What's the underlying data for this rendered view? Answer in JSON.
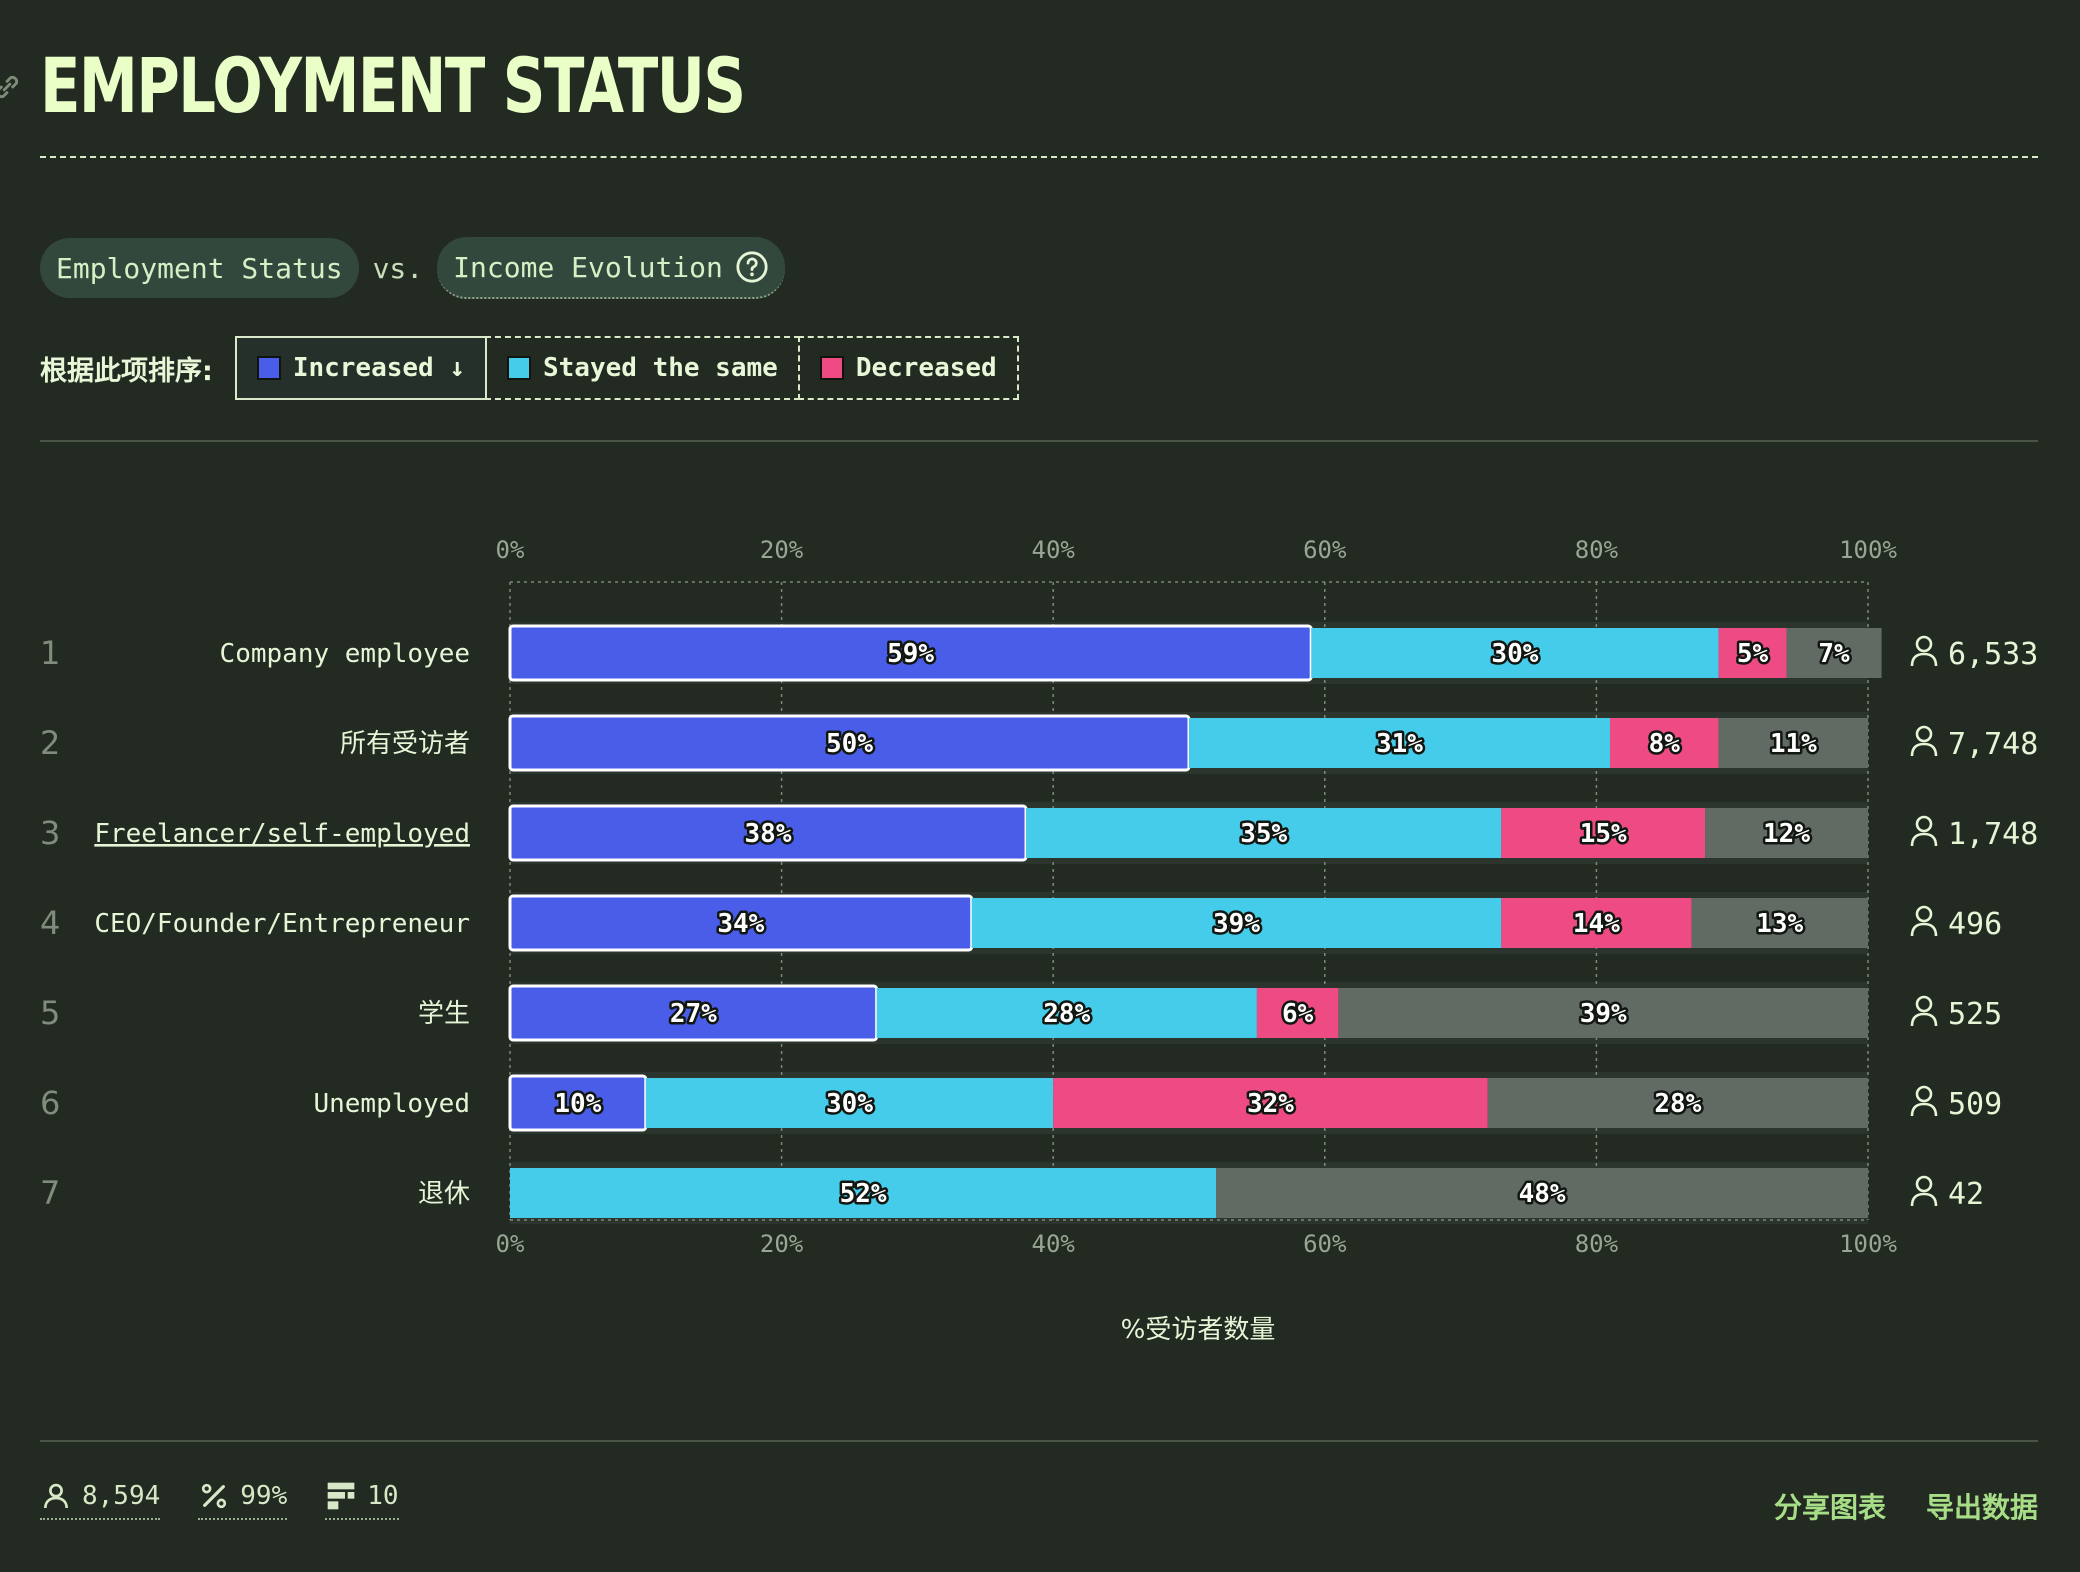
{
  "title": "EMPLOYMENT STATUS",
  "comparison": {
    "left": "Employment Status",
    "vs": "vs.",
    "right": "Income Evolution"
  },
  "sort": {
    "label": "根据此项排序:",
    "options": [
      {
        "label": "Increased ↓",
        "color": "#4a5de8",
        "active": true
      },
      {
        "label": "Stayed the same",
        "color": "#45ccea",
        "active": false
      },
      {
        "label": "Decreased",
        "color": "#ee4a84",
        "active": false
      }
    ]
  },
  "chart_data": {
    "type": "bar",
    "orientation": "horizontal",
    "stacked": true,
    "categories": [
      "Company employee",
      "所有受访者",
      "Freelancer/self-employed",
      "CEO/Founder/Entrepreneur",
      "学生",
      "Unemployed",
      "退休"
    ],
    "ranks": [
      "1",
      "2",
      "3",
      "4",
      "5",
      "6",
      "7"
    ],
    "series": [
      {
        "name": "Increased",
        "color": "#4a5de8",
        "values": [
          59,
          50,
          38,
          34,
          27,
          10,
          0
        ]
      },
      {
        "name": "Stayed the same",
        "color": "#45ccea",
        "values": [
          30,
          31,
          35,
          39,
          28,
          30,
          52
        ]
      },
      {
        "name": "Decreased",
        "color": "#ee4a84",
        "values": [
          5,
          8,
          15,
          14,
          6,
          32,
          0
        ]
      },
      {
        "color": "#626b63",
        "values": [
          7,
          11,
          12,
          13,
          39,
          28,
          48
        ]
      }
    ],
    "respondents": [
      "6,533",
      "7,748",
      "1,748",
      "496",
      "525",
      "509",
      "42"
    ],
    "xlim": [
      0,
      100
    ],
    "ticks": [
      "0%",
      "20%",
      "40%",
      "60%",
      "80%",
      "100%"
    ],
    "xlabel": "%受访者数量",
    "grid": true
  },
  "footer": {
    "respondents": "8,594",
    "percent": "99%",
    "questions": "10"
  },
  "actions": {
    "share": "分享图表",
    "export": "导出数据"
  }
}
